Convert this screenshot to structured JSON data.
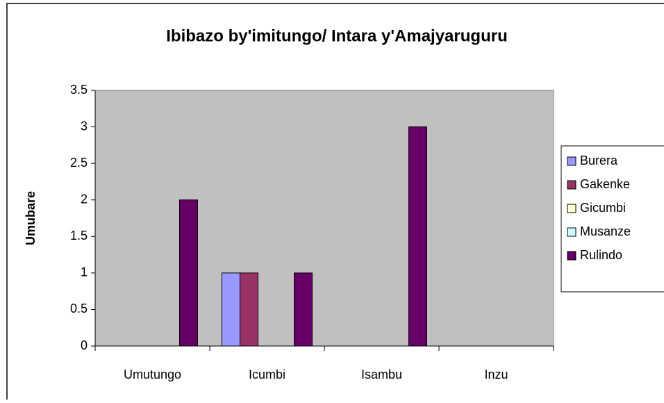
{
  "chart_data": {
    "type": "bar",
    "title": "Ibibazo by'imitungo/ Intara y'Amajyaruguru",
    "y_label": "Umubare",
    "categories": [
      "Umutungo",
      "Icumbi",
      "Isambu",
      "Inzu"
    ],
    "series": [
      {
        "name": "Burera",
        "color": "#9999ff",
        "values": [
          0,
          1,
          0,
          0
        ]
      },
      {
        "name": "Gakenke",
        "color": "#993366",
        "values": [
          0,
          1,
          0,
          0
        ]
      },
      {
        "name": "Gicumbi",
        "color": "#ffffcc",
        "values": [
          0,
          0,
          0,
          0
        ]
      },
      {
        "name": "Musanze",
        "color": "#ccffff",
        "values": [
          0,
          0,
          0,
          0
        ]
      },
      {
        "name": "Rulindo",
        "color": "#660066",
        "values": [
          2,
          1,
          3,
          0
        ]
      }
    ],
    "ylim": [
      0,
      3.5
    ],
    "yticks": [
      0,
      0.5,
      1,
      1.5,
      2,
      2.5,
      3,
      3.5
    ],
    "grid": false,
    "legend": "right"
  }
}
